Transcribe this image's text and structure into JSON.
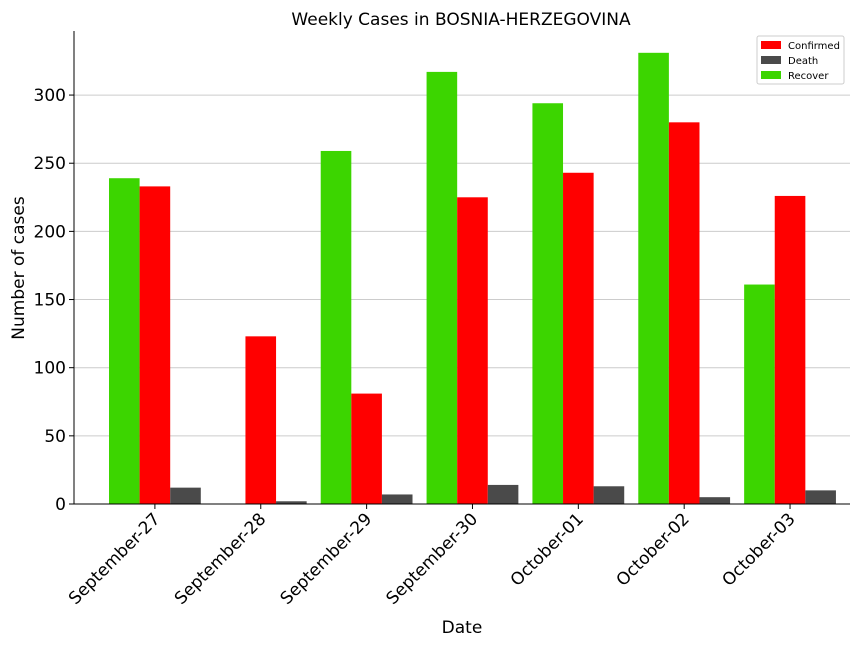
{
  "chart_data": {
    "type": "bar",
    "title": "Weekly Cases in BOSNIA-HERZEGOVINA",
    "xlabel": "Date",
    "ylabel": "Number of cases",
    "categories": [
      "September-27",
      "September-28",
      "September-29",
      "September-30",
      "October-01",
      "October-02",
      "October-03"
    ],
    "series": [
      {
        "name": "Recover",
        "color": "#3cd500",
        "values": [
          239,
          0,
          259,
          317,
          294,
          331,
          161
        ]
      },
      {
        "name": "Confirmed",
        "color": "#ff0000",
        "values": [
          233,
          123,
          81,
          225,
          243,
          280,
          226
        ]
      },
      {
        "name": "Death",
        "color": "#4a4a4a",
        "values": [
          12,
          2,
          7,
          14,
          13,
          5,
          10
        ]
      }
    ],
    "legend_order": [
      "Confirmed",
      "Death",
      "Recover"
    ],
    "ylim": [
      0,
      347
    ],
    "yticks": [
      0,
      50,
      100,
      150,
      200,
      250,
      300
    ],
    "grid": "horizontal",
    "legend_position": "top-right"
  }
}
